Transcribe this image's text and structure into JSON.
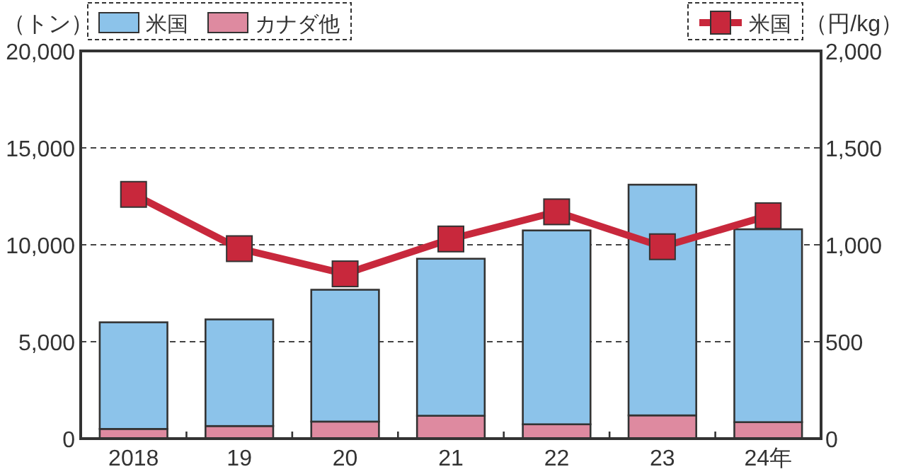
{
  "chart_data": {
    "type": "bar",
    "stacked": true,
    "categories": [
      "2018",
      "19",
      "20",
      "21",
      "22",
      "23",
      "24年"
    ],
    "series": [
      {
        "name": "カナダ他",
        "color": "#de8aa0",
        "values": [
          500,
          650,
          880,
          1180,
          740,
          1200,
          850
        ]
      },
      {
        "name": "米国",
        "color": "#8cc3ea",
        "values": [
          5500,
          5500,
          6800,
          8100,
          10000,
          11900,
          9950
        ]
      },
      {
        "name": "米国",
        "type": "line",
        "axis": "y2",
        "marker": "square",
        "color": "#c8283c",
        "values": [
          1260,
          980,
          850,
          1030,
          1170,
          990,
          1150
        ]
      }
    ],
    "ylabel": "（トン）",
    "y2label": "（円/kg）",
    "ylim": [
      0,
      20000
    ],
    "yticks": [
      0,
      {
        "value": 5000,
        "label": "5,000"
      },
      {
        "value": 10000,
        "label": "10,000"
      },
      {
        "value": 15000,
        "label": "15,000"
      },
      {
        "value": 20000,
        "label": "20,000"
      }
    ],
    "y2lim": [
      0,
      2000
    ],
    "y2ticks": [
      0,
      500,
      {
        "value": 1000,
        "label": "1,000"
      },
      {
        "value": 1500,
        "label": "1,500"
      },
      {
        "value": 2000,
        "label": "2,000"
      }
    ],
    "grid": "y",
    "legend": "top"
  }
}
